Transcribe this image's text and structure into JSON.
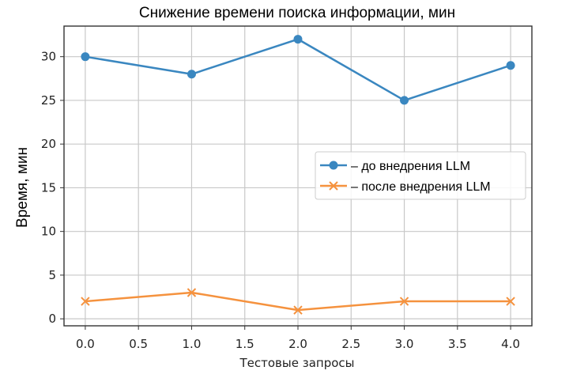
{
  "chart_data": {
    "type": "line",
    "title": "Снижение времени поиска информации, мин",
    "xlabel": "Тестовые запросы",
    "ylabel": "Время, мин",
    "xlim": [
      -0.2,
      4.2
    ],
    "ylim": [
      -0.8,
      33.5
    ],
    "xticks": [
      0.0,
      0.5,
      1.0,
      1.5,
      2.0,
      2.5,
      3.0,
      3.5,
      4.0
    ],
    "xtick_labels": [
      "0.0",
      "0.5",
      "1.0",
      "1.5",
      "2.0",
      "2.5",
      "3.0",
      "3.5",
      "4.0"
    ],
    "yticks": [
      0,
      5,
      10,
      15,
      20,
      25,
      30
    ],
    "ytick_labels": [
      "0",
      "5",
      "10",
      "15",
      "20",
      "25",
      "30"
    ],
    "grid": true,
    "legend_position": "center-right",
    "x": [
      0,
      1,
      2,
      3,
      4
    ],
    "series": [
      {
        "name": "– до внедрения LLM",
        "values": [
          30,
          28,
          32,
          25,
          29
        ],
        "color": "#3a87c0",
        "marker": "circle"
      },
      {
        "name": "– после внедрения LLM",
        "values": [
          2,
          3,
          1,
          2,
          2
        ],
        "color": "#f5923e",
        "marker": "x"
      }
    ]
  }
}
